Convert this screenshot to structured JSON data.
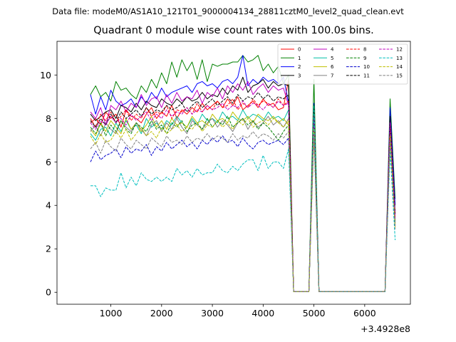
{
  "figure": {
    "suptitle": "Data file: modeM0/AS1A10_121T01_9000004134_28811cztM0_level2_quad_clean.evt",
    "title": "Quadrant 0 module wise count rates with 100.0s bins."
  },
  "chart_data": {
    "type": "line",
    "title": "Quadrant 0 module wise count rates with 100.0s bins.",
    "xlabel": "",
    "ylabel": "",
    "x_offset_label": "+3.4928e8",
    "xlim": [
      -60,
      6900
    ],
    "ylim": [
      -0.55,
      11.55
    ],
    "x_ticks": [
      1000,
      2000,
      3000,
      4000,
      5000,
      6000
    ],
    "y_ticks": [
      0,
      2,
      4,
      6,
      8,
      10
    ],
    "grid": false,
    "legend_position": "top-right",
    "x": [
      600,
      700,
      800,
      900,
      1000,
      1100,
      1200,
      1300,
      1400,
      1500,
      1600,
      1700,
      1800,
      1900,
      2000,
      2100,
      2200,
      2300,
      2400,
      2500,
      2600,
      2700,
      2800,
      2900,
      3000,
      3100,
      3200,
      3300,
      3400,
      3500,
      3600,
      3700,
      3800,
      3900,
      4000,
      4100,
      4200,
      4300,
      4400,
      4500,
      4600,
      4700,
      4800,
      4900,
      5000,
      5100,
      5200,
      5300,
      5400,
      5500,
      5600,
      5700,
      5800,
      5900,
      6000,
      6100,
      6200,
      6300,
      6400,
      6500,
      6600
    ],
    "series": [
      {
        "name": "0",
        "color": "#ff0000",
        "dash": "solid",
        "values": [
          7.8,
          8.0,
          7.7,
          8.3,
          8.0,
          8.2,
          7.6,
          8.4,
          8.1,
          8.0,
          7.8,
          8.2,
          8.5,
          8.0,
          8.3,
          8.1,
          8.6,
          8.0,
          8.4,
          8.2,
          8.5,
          8.3,
          8.7,
          8.4,
          8.6,
          8.8,
          8.5,
          8.9,
          8.6,
          9.0,
          8.4,
          8.6,
          8.8,
          8.5,
          8.9,
          8.6,
          8.7,
          8.4,
          8.5,
          9.8,
          0.03,
          0.03,
          0.03,
          0.03,
          8.2,
          0.03,
          0.03,
          0.03,
          0.03,
          0.03,
          0.03,
          0.03,
          0.03,
          0.03,
          0.03,
          0.03,
          0.03,
          0.03,
          0.03,
          8.3,
          3.4
        ]
      },
      {
        "name": "1",
        "color": "#008000",
        "dash": "solid",
        "values": [
          9.1,
          9.5,
          9.0,
          9.2,
          8.8,
          9.7,
          9.3,
          9.4,
          9.1,
          8.9,
          9.5,
          9.2,
          9.8,
          9.4,
          10.1,
          9.6,
          10.6,
          9.9,
          10.7,
          10.2,
          10.6,
          9.8,
          10.7,
          9.7,
          10.5,
          10.4,
          10.5,
          10.5,
          10.6,
          10.6,
          10.9,
          10.6,
          10.7,
          10.9,
          10.2,
          10.5,
          10.1,
          10.4,
          9.6,
          10.0,
          0.03,
          0.03,
          0.03,
          0.03,
          9.8,
          0.03,
          0.03,
          0.03,
          0.03,
          0.03,
          0.03,
          0.03,
          0.03,
          0.03,
          0.03,
          0.03,
          0.03,
          0.03,
          0.03,
          8.9,
          4.3
        ]
      },
      {
        "name": "2",
        "color": "#0000ff",
        "dash": "solid",
        "values": [
          9.1,
          8.2,
          9.0,
          8.4,
          9.3,
          8.8,
          8.6,
          8.7,
          8.9,
          8.5,
          9.0,
          8.7,
          9.2,
          8.9,
          9.4,
          9.0,
          9.2,
          9.3,
          9.4,
          9.5,
          9.2,
          9.6,
          9.7,
          9.5,
          9.6,
          9.4,
          9.7,
          9.8,
          9.6,
          9.9,
          10.9,
          9.5,
          9.8,
          9.6,
          9.9,
          9.7,
          9.8,
          9.6,
          9.9,
          8.7,
          0.03,
          0.03,
          0.03,
          0.03,
          8.7,
          0.03,
          0.03,
          0.03,
          0.03,
          0.03,
          0.03,
          0.03,
          0.03,
          0.03,
          0.03,
          0.03,
          0.03,
          0.03,
          0.03,
          8.5,
          4.0
        ]
      },
      {
        "name": "3",
        "color": "#000000",
        "dash": "solid",
        "values": [
          8.2,
          7.9,
          8.1,
          8.3,
          8.4,
          8.0,
          8.6,
          8.5,
          8.3,
          8.7,
          8.4,
          8.8,
          8.6,
          8.5,
          8.9,
          8.7,
          8.6,
          8.9,
          8.7,
          9.0,
          8.8,
          8.9,
          9.2,
          8.9,
          9.1,
          9.0,
          9.4,
          9.1,
          9.5,
          9.3,
          9.9,
          9.2,
          9.5,
          9.6,
          9.8,
          9.4,
          9.7,
          9.5,
          9.6,
          9.5,
          0.03,
          0.03,
          0.03,
          0.03,
          8.6,
          0.03,
          0.03,
          0.03,
          0.03,
          0.03,
          0.03,
          0.03,
          0.03,
          0.03,
          0.03,
          0.03,
          0.03,
          0.03,
          0.03,
          8.1,
          3.6
        ]
      },
      {
        "name": "4",
        "color": "#bf00bf",
        "dash": "solid",
        "values": [
          8.3,
          8.0,
          8.5,
          7.7,
          8.6,
          8.4,
          8.8,
          8.3,
          8.7,
          8.5,
          9.1,
          8.6,
          8.9,
          9.0,
          8.5,
          9.1,
          8.7,
          9.2,
          8.8,
          9.0,
          8.9,
          9.3,
          8.7,
          9.2,
          9.0,
          9.4,
          8.9,
          9.5,
          9.2,
          9.6,
          9.3,
          9.7,
          9.1,
          9.4,
          9.6,
          9.2,
          9.5,
          9.3,
          9.4,
          8.6,
          0.03,
          0.03,
          0.03,
          0.03,
          8.0,
          0.03,
          0.03,
          0.03,
          0.03,
          0.03,
          0.03,
          0.03,
          0.03,
          0.03,
          0.03,
          0.03,
          0.03,
          0.03,
          0.03,
          7.7,
          3.3
        ]
      },
      {
        "name": "5",
        "color": "#00bfa5",
        "dash": "solid",
        "values": [
          7.3,
          7.0,
          7.5,
          7.6,
          7.2,
          7.8,
          7.4,
          7.9,
          7.5,
          7.7,
          7.3,
          8.0,
          7.6,
          7.8,
          7.5,
          7.9,
          7.7,
          8.1,
          7.8,
          7.6,
          8.0,
          7.7,
          8.2,
          7.9,
          8.0,
          7.8,
          8.3,
          8.0,
          8.1,
          7.9,
          8.4,
          8.0,
          8.2,
          8.1,
          7.9,
          8.3,
          8.0,
          8.1,
          7.9,
          8.4,
          0.03,
          0.03,
          0.03,
          0.03,
          7.9,
          0.03,
          0.03,
          0.03,
          0.03,
          0.03,
          0.03,
          0.03,
          0.03,
          0.03,
          0.03,
          0.03,
          0.03,
          0.03,
          0.03,
          7.6,
          3.2
        ]
      },
      {
        "name": "6",
        "color": "#bfbf00",
        "dash": "solid",
        "values": [
          7.5,
          7.2,
          7.8,
          7.4,
          7.9,
          7.6,
          7.3,
          8.0,
          7.5,
          7.8,
          7.4,
          7.7,
          8.1,
          7.6,
          7.9,
          7.5,
          8.0,
          7.7,
          7.8,
          7.6,
          8.1,
          7.8,
          7.9,
          7.7,
          8.2,
          7.9,
          8.0,
          7.8,
          8.3,
          8.0,
          7.9,
          8.1,
          7.8,
          8.2,
          8.0,
          7.9,
          8.1,
          7.8,
          8.0,
          7.7,
          0.03,
          0.03,
          0.03,
          0.03,
          7.6,
          0.03,
          0.03,
          0.03,
          0.03,
          0.03,
          0.03,
          0.03,
          0.03,
          0.03,
          0.03,
          0.03,
          0.03,
          0.03,
          0.03,
          7.3,
          3.0
        ]
      },
      {
        "name": "7",
        "color": "#808080",
        "dash": "solid",
        "values": [
          7.4,
          7.7,
          7.2,
          7.8,
          7.5,
          7.3,
          7.9,
          7.6,
          7.4,
          7.8,
          7.5,
          7.2,
          7.7,
          7.9,
          7.4,
          7.8,
          7.5,
          8.0,
          7.6,
          7.3,
          7.9,
          7.7,
          7.5,
          7.8,
          8.0,
          7.6,
          7.9,
          7.7,
          7.4,
          7.8,
          8.0,
          7.5,
          7.9,
          7.6,
          7.8,
          8.1,
          7.7,
          7.9,
          7.6,
          8.0,
          0.03,
          0.03,
          0.03,
          0.03,
          7.7,
          0.03,
          0.03,
          0.03,
          0.03,
          0.03,
          0.03,
          0.03,
          0.03,
          0.03,
          0.03,
          0.03,
          0.03,
          0.03,
          0.03,
          7.4,
          3.1
        ]
      },
      {
        "name": "8",
        "color": "#ff0000",
        "dash": "dashed",
        "values": [
          8.0,
          7.6,
          8.2,
          7.9,
          8.3,
          7.8,
          8.1,
          8.4,
          7.9,
          8.2,
          8.0,
          8.5,
          8.1,
          8.3,
          8.2,
          8.6,
          8.0,
          8.4,
          8.3,
          8.5,
          8.2,
          8.7,
          8.3,
          8.6,
          8.4,
          8.8,
          8.5,
          8.6,
          8.9,
          8.4,
          8.7,
          8.5,
          8.9,
          8.6,
          8.8,
          8.7,
          8.5,
          8.9,
          8.6,
          8.8,
          0.03,
          0.03,
          0.03,
          0.03,
          8.4,
          0.03,
          0.03,
          0.03,
          0.03,
          0.03,
          0.03,
          0.03,
          0.03,
          0.03,
          0.03,
          0.03,
          0.03,
          0.03,
          0.03,
          7.9,
          3.5
        ]
      },
      {
        "name": "9",
        "color": "#008000",
        "dash": "dashed",
        "values": [
          7.6,
          7.3,
          7.8,
          7.2,
          7.7,
          7.4,
          7.9,
          7.5,
          7.3,
          7.8,
          7.6,
          7.4,
          7.9,
          7.5,
          7.7,
          7.3,
          7.8,
          7.6,
          7.9,
          7.4,
          7.7,
          7.8,
          7.5,
          8.0,
          7.6,
          7.9,
          7.7,
          8.1,
          7.6,
          7.8,
          8.0,
          7.7,
          7.9,
          7.5,
          7.8,
          7.6,
          7.3,
          7.0,
          7.4,
          7.7,
          0.03,
          0.03,
          0.03,
          0.03,
          7.8,
          0.03,
          0.03,
          0.03,
          0.03,
          0.03,
          0.03,
          0.03,
          0.03,
          0.03,
          0.03,
          0.03,
          0.03,
          0.03,
          0.03,
          7.5,
          3.2
        ]
      },
      {
        "name": "10",
        "color": "#0000cc",
        "dash": "dashed",
        "values": [
          6.0,
          6.5,
          6.1,
          6.3,
          6.4,
          6.6,
          6.2,
          6.7,
          6.4,
          6.6,
          6.5,
          6.8,
          6.3,
          6.7,
          6.5,
          6.9,
          6.6,
          6.8,
          7.0,
          6.7,
          6.9,
          6.6,
          7.0,
          6.8,
          7.1,
          6.9,
          7.2,
          6.9,
          7.0,
          6.7,
          7.1,
          6.8,
          6.6,
          6.9,
          7.0,
          6.8,
          6.9,
          7.0,
          6.8,
          7.1,
          0.03,
          0.03,
          0.03,
          0.03,
          7.3,
          0.03,
          0.03,
          0.03,
          0.03,
          0.03,
          0.03,
          0.03,
          0.03,
          0.03,
          0.03,
          0.03,
          0.03,
          0.03,
          0.03,
          7.0,
          3.0
        ]
      },
      {
        "name": "11",
        "color": "#000000",
        "dash": "dashed",
        "values": [
          7.9,
          7.6,
          8.0,
          7.7,
          8.2,
          7.8,
          8.3,
          8.0,
          8.2,
          8.4,
          8.1,
          8.5,
          8.2,
          8.4,
          8.3,
          8.6,
          8.4,
          8.5,
          8.7,
          8.3,
          8.6,
          8.8,
          8.5,
          8.7,
          8.9,
          8.6,
          8.8,
          9.0,
          8.7,
          9.1,
          8.8,
          9.0,
          8.9,
          9.2,
          8.9,
          9.1,
          8.8,
          9.0,
          8.9,
          9.1,
          0.03,
          0.03,
          0.03,
          0.03,
          8.5,
          0.03,
          0.03,
          0.03,
          0.03,
          0.03,
          0.03,
          0.03,
          0.03,
          0.03,
          0.03,
          0.03,
          0.03,
          0.03,
          0.03,
          8.0,
          3.6
        ]
      },
      {
        "name": "12",
        "color": "#bf00bf",
        "dash": "dashed",
        "values": [
          7.8,
          7.5,
          7.9,
          7.7,
          8.1,
          7.8,
          8.0,
          7.7,
          8.2,
          7.9,
          8.1,
          8.3,
          7.9,
          8.2,
          8.0,
          8.4,
          8.1,
          8.3,
          8.2,
          8.5,
          8.2,
          8.4,
          8.3,
          8.6,
          8.4,
          8.5,
          8.7,
          8.4,
          8.6,
          8.5,
          8.8,
          8.5,
          8.7,
          8.6,
          8.4,
          8.7,
          8.5,
          8.8,
          8.6,
          8.7,
          0.03,
          0.03,
          0.03,
          0.03,
          8.1,
          0.03,
          0.03,
          0.03,
          0.03,
          0.03,
          0.03,
          0.03,
          0.03,
          0.03,
          0.03,
          0.03,
          0.03,
          0.03,
          0.03,
          7.8,
          3.4
        ]
      },
      {
        "name": "13",
        "color": "#00bfbf",
        "dash": "dashed",
        "values": [
          4.9,
          4.9,
          4.4,
          4.8,
          4.7,
          4.7,
          5.5,
          4.8,
          5.3,
          4.9,
          5.5,
          5.2,
          5.1,
          5.3,
          5.1,
          5.3,
          5.1,
          5.7,
          5.4,
          5.6,
          5.3,
          5.7,
          5.4,
          5.5,
          5.5,
          5.9,
          5.6,
          5.5,
          5.8,
          5.6,
          5.9,
          6.1,
          6.1,
          5.6,
          6.3,
          5.7,
          6.0,
          6.0,
          5.7,
          6.6,
          0.03,
          0.03,
          0.03,
          0.03,
          8.6,
          0.03,
          0.03,
          0.03,
          0.03,
          0.03,
          0.03,
          0.03,
          0.03,
          0.03,
          0.03,
          0.03,
          0.03,
          0.03,
          0.03,
          6.5,
          2.4
        ]
      },
      {
        "name": "14",
        "color": "#bfbf00",
        "dash": "dashed",
        "values": [
          7.2,
          6.8,
          7.3,
          6.9,
          7.0,
          7.4,
          7.1,
          7.5,
          7.0,
          7.3,
          7.6,
          7.2,
          7.4,
          7.1,
          7.6,
          7.3,
          7.5,
          7.7,
          7.4,
          7.6,
          7.5,
          7.8,
          7.4,
          7.7,
          7.6,
          7.9,
          7.6,
          7.8,
          7.5,
          7.9,
          7.7,
          8.0,
          7.6,
          7.8,
          7.9,
          7.7,
          8.0,
          7.8,
          7.6,
          7.9,
          0.03,
          0.03,
          0.03,
          0.03,
          7.5,
          0.03,
          0.03,
          0.03,
          0.03,
          0.03,
          0.03,
          0.03,
          0.03,
          0.03,
          0.03,
          0.03,
          0.03,
          0.03,
          0.03,
          7.2,
          3.0
        ]
      },
      {
        "name": "15",
        "color": "#808080",
        "dash": "dashed",
        "values": [
          6.6,
          6.9,
          6.4,
          7.0,
          6.7,
          6.5,
          7.1,
          6.8,
          6.6,
          7.0,
          6.8,
          6.6,
          7.1,
          6.9,
          6.7,
          7.2,
          6.9,
          7.0,
          6.8,
          7.2,
          6.9,
          7.1,
          7.0,
          7.3,
          7.0,
          7.2,
          7.1,
          6.9,
          7.3,
          7.0,
          7.2,
          7.1,
          7.4,
          7.1,
          7.3,
          7.2,
          7.0,
          7.3,
          7.1,
          7.4,
          0.03,
          0.03,
          0.03,
          0.03,
          7.2,
          0.03,
          0.03,
          0.03,
          0.03,
          0.03,
          0.03,
          0.03,
          0.03,
          0.03,
          0.03,
          0.03,
          0.03,
          0.03,
          0.03,
          7.0,
          2.9
        ]
      }
    ]
  }
}
